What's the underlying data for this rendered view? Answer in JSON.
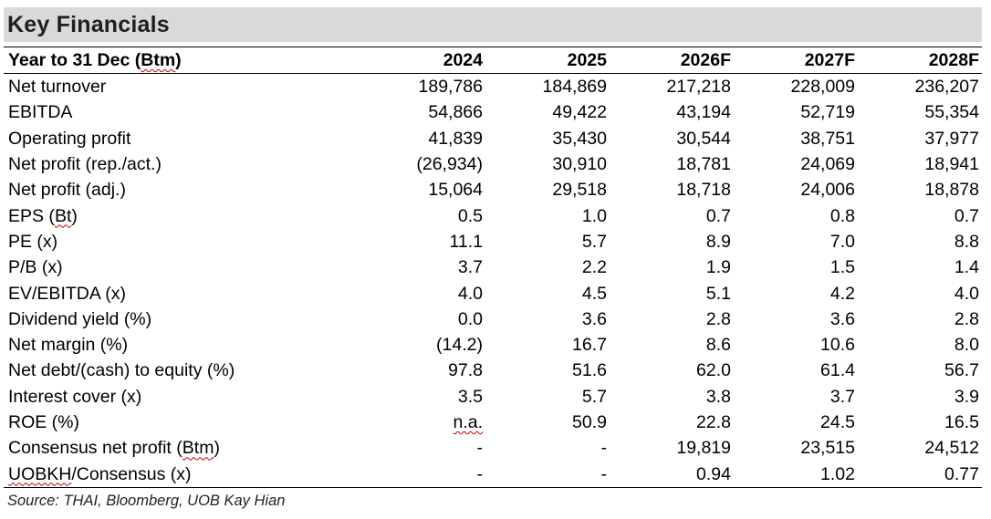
{
  "title": "Key Financials",
  "header": {
    "label_pre": "Year to 31 Dec (",
    "label_unit": "Btm",
    "label_post": ")",
    "years": [
      "2024",
      "2025",
      "2026F",
      "2027F",
      "2028F"
    ]
  },
  "rows": [
    {
      "label": "Net turnover",
      "values": [
        "189,786",
        "184,869",
        "217,218",
        "228,009",
        "236,207"
      ]
    },
    {
      "label": "EBITDA",
      "values": [
        "54,866",
        "49,422",
        "43,194",
        "52,719",
        "55,354"
      ]
    },
    {
      "label": "Operating profit",
      "values": [
        "41,839",
        "35,430",
        "30,544",
        "38,751",
        "37,977"
      ]
    },
    {
      "label": "Net profit (rep./act.)",
      "values": [
        "(26,934)",
        "30,910",
        "18,781",
        "24,069",
        "18,941"
      ]
    },
    {
      "label": "Net profit (adj.)",
      "values": [
        "15,064",
        "29,518",
        "18,718",
        "24,006",
        "18,878"
      ]
    },
    {
      "label": "EPS  (Bt)",
      "values": [
        "0.5",
        "1.0",
        "0.7",
        "0.8",
        "0.7"
      ]
    },
    {
      "label": "PE (x)",
      "values": [
        "11.1",
        "5.7",
        "8.9",
        "7.0",
        "8.8"
      ]
    },
    {
      "label": "P/B (x)",
      "values": [
        "3.7",
        "2.2",
        "1.9",
        "1.5",
        "1.4"
      ]
    },
    {
      "label": "EV/EBITDA (x)",
      "values": [
        "4.0",
        "4.5",
        "5.1",
        "4.2",
        "4.0"
      ]
    },
    {
      "label": "Dividend yield (%)",
      "values": [
        "0.0",
        "3.6",
        "2.8",
        "3.6",
        "2.8"
      ]
    },
    {
      "label": "Net margin (%)",
      "values": [
        "(14.2)",
        "16.7",
        "8.6",
        "10.6",
        "8.0"
      ]
    },
    {
      "label": "Net debt/(cash) to equity (%)",
      "values": [
        "97.8",
        "51.6",
        "62.0",
        "61.4",
        "56.7"
      ]
    },
    {
      "label": "Interest cover (x)",
      "values": [
        "3.5",
        "5.7",
        "3.8",
        "3.7",
        "3.9"
      ]
    },
    {
      "label": "ROE (%)",
      "values": [
        "n.a.",
        "50.9",
        "22.8",
        "24.5",
        "16.5"
      ]
    },
    {
      "label": "Consensus net profit (Btm)",
      "values": [
        "-",
        "-",
        "19,819",
        "23,515",
        "24,512"
      ]
    },
    {
      "label": "UOBKH/Consensus (x)",
      "values": [
        "-",
        "-",
        "0.94",
        "1.02",
        "0.77"
      ]
    }
  ],
  "source": "Source: THAI, Bloomberg, UOB Kay Hian"
}
